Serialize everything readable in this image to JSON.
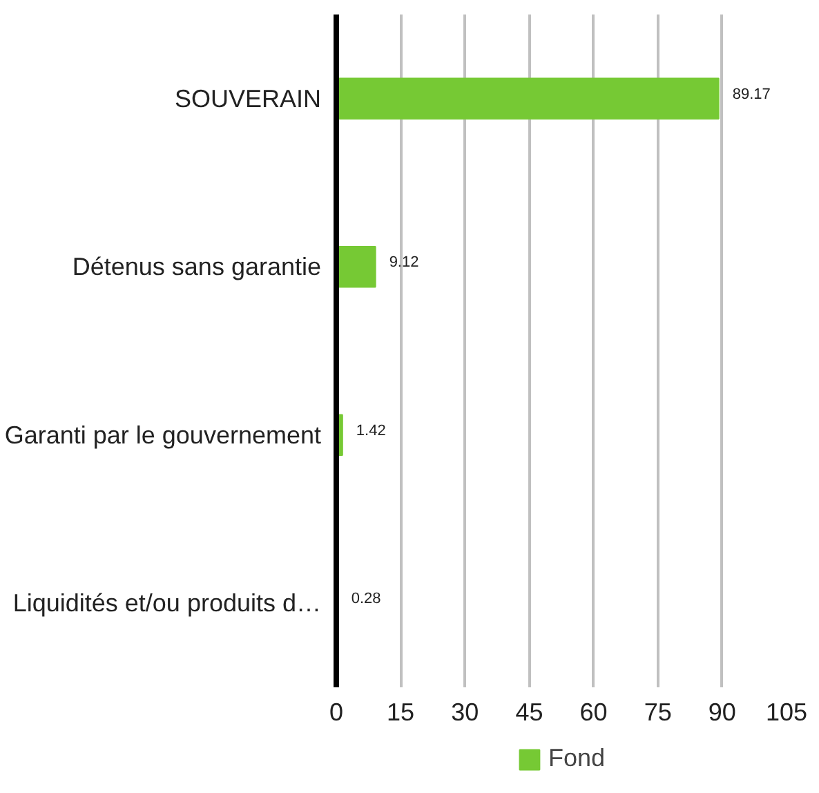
{
  "chart_data": {
    "type": "bar",
    "orientation": "horizontal",
    "categories": [
      "SOUVERAIN",
      "Détenus sans garantie",
      "Garanti par le gouvernement",
      "Liquidités et/ou produits d…"
    ],
    "series": [
      {
        "name": "Fond",
        "color": "#76c934",
        "values": [
          89.17,
          9.12,
          1.42,
          0.28
        ]
      }
    ],
    "xlim": [
      0,
      105
    ],
    "xticks": [
      0,
      15,
      30,
      45,
      60,
      75,
      90,
      105
    ],
    "grid": "x",
    "legend": "bottom",
    "data_labels": true
  }
}
